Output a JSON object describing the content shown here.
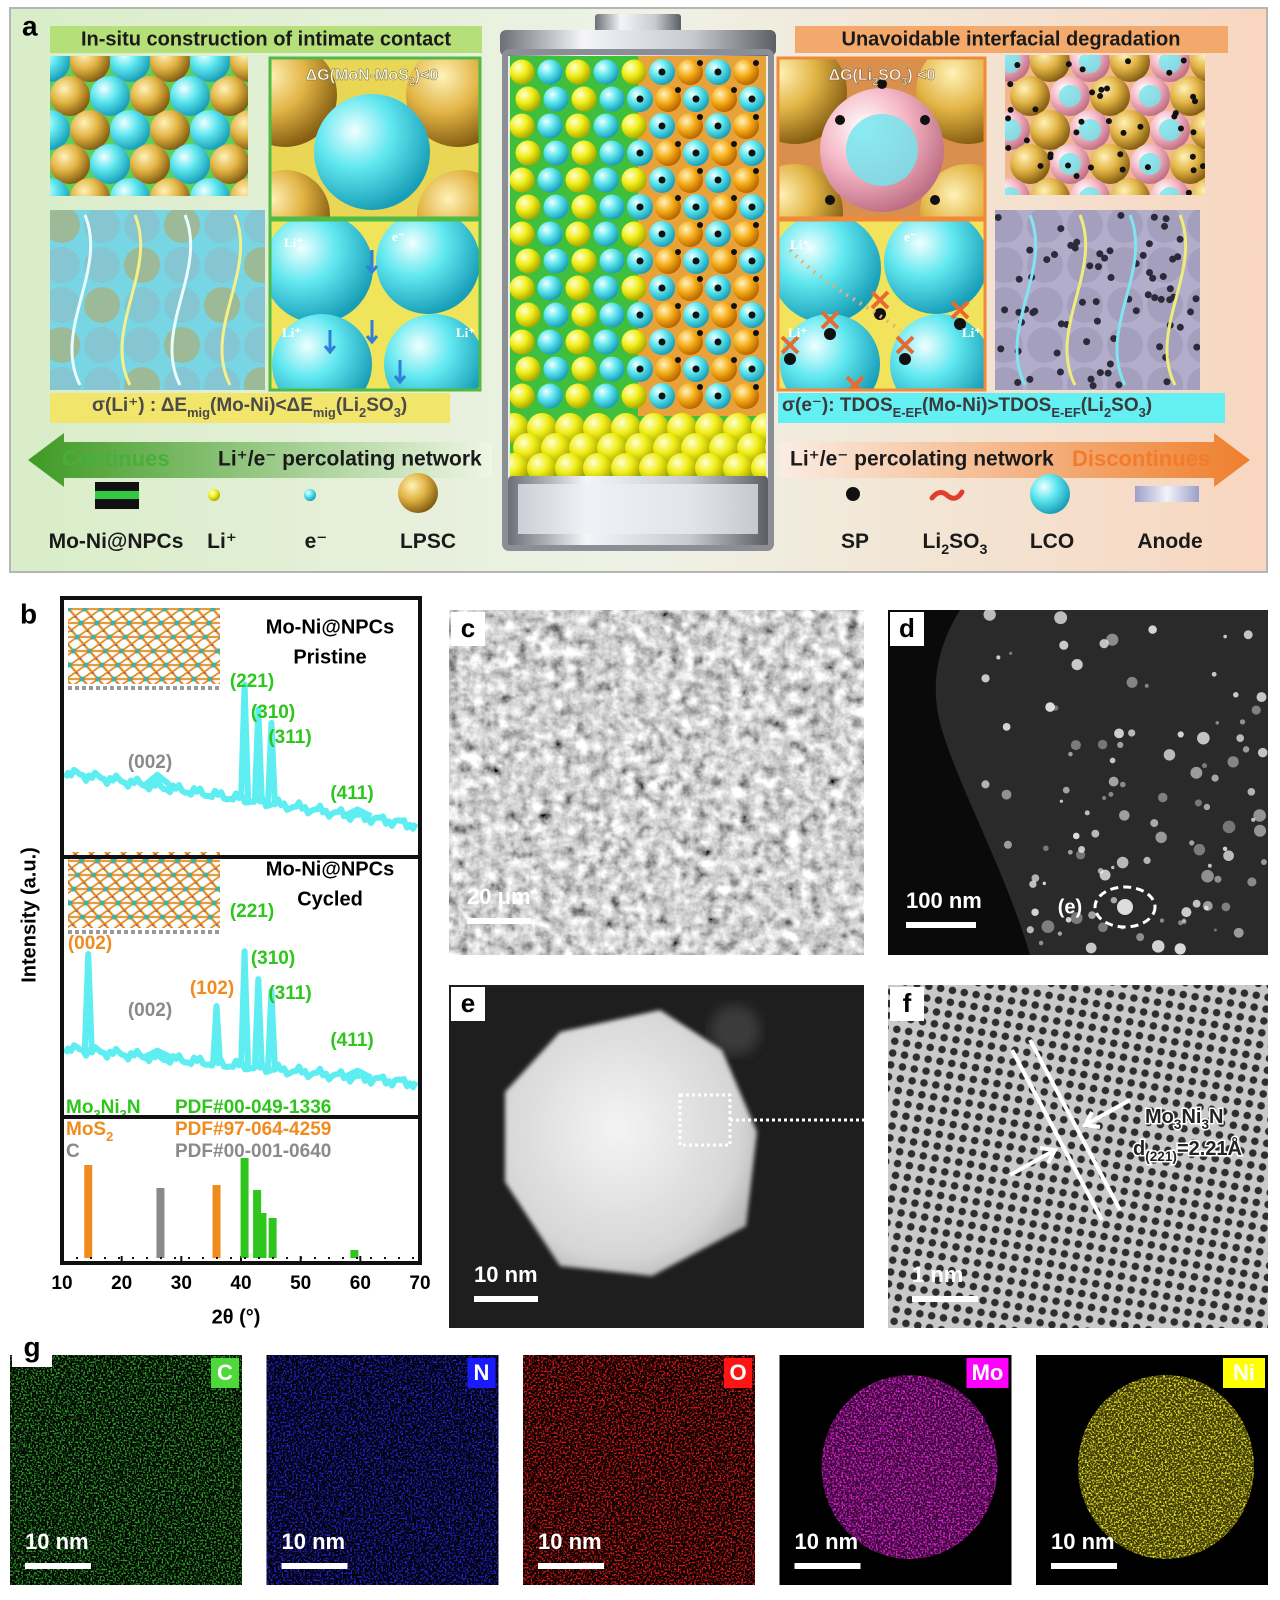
{
  "panel_a": {
    "label": "a",
    "left_title": "In-situ construction of intimate contact",
    "right_title": "Unavoidable interfacial degradation",
    "left_energy": [
      "ΔG(MoN-MoS",
      "2",
      ")<0"
    ],
    "right_energy": [
      "ΔG(Li",
      "2",
      "SO",
      "3",
      ") <0"
    ],
    "left_inset_labels": [
      "Li⁺",
      "e⁻",
      "Li⁺",
      "Li⁺"
    ],
    "right_inset_labels": [
      "Li⁺",
      "e⁻",
      "Li⁺",
      "Li⁺"
    ],
    "left_sigma": [
      "σ(Li⁺) : ΔE",
      "mig",
      "(Mo-Ni)<ΔE",
      "mig",
      "(Li",
      "2",
      "SO",
      "3",
      ")"
    ],
    "right_sigma": [
      "σ(e⁻): TDOS",
      "E-EF",
      "(Mo-Ni)>TDOS",
      "E-EF",
      "(Li",
      "2",
      "SO",
      "3",
      ")"
    ],
    "left_arrow": {
      "status": "Continues",
      "network": "Li⁺/e⁻ percolating network"
    },
    "right_arrow": {
      "network": "Li⁺/e⁻ percolating network",
      "status": "Discontinues"
    },
    "left_legend": [
      [
        "Mo-Ni@NPCs"
      ],
      [
        "Li⁺"
      ],
      [
        "e⁻"
      ],
      [
        "LPSC"
      ]
    ],
    "right_legend": [
      [
        "SP"
      ],
      [
        "Li",
        "2",
        "SO",
        "3"
      ],
      [
        "LCO"
      ],
      [
        "Anode"
      ]
    ]
  },
  "panel_b": {
    "label": "b",
    "ylabel": "Intensity (a.u.)",
    "xlabel": "2θ (°)",
    "xlim": [
      10,
      70
    ],
    "xticks": [
      10,
      20,
      30,
      40,
      50,
      60,
      70
    ],
    "pristine": {
      "sample": "Mo-Ni@NPCs",
      "state": "Pristine",
      "peaks": [
        {
          "label": "(002)",
          "color": "#8a8a8a",
          "x": 26,
          "intensity": 10
        },
        {
          "label": "(221)",
          "color": "#2ec51c",
          "x": 40.6,
          "intensity": 100
        },
        {
          "label": "(310)",
          "color": "#2ec51c",
          "x": 42.9,
          "intensity": 80
        },
        {
          "label": "(311)",
          "color": "#2ec51c",
          "x": 45.1,
          "intensity": 70
        },
        {
          "label": "(411)",
          "color": "#2ec51c",
          "x": 59.5,
          "intensity": 6
        }
      ]
    },
    "cycled": {
      "sample": "Mo-Ni@NPCs",
      "state": "Cycled",
      "peaks": [
        {
          "label": "(002)",
          "color": "#f08c1e",
          "x": 14.4,
          "intensity": 84
        },
        {
          "label": "(002)",
          "color": "#8a8a8a",
          "x": 26,
          "intensity": 6
        },
        {
          "label": "(102)",
          "color": "#f08c1e",
          "x": 35.9,
          "intensity": 50
        },
        {
          "label": "(221)",
          "color": "#2ec51c",
          "x": 40.6,
          "intensity": 100
        },
        {
          "label": "(310)",
          "color": "#2ec51c",
          "x": 42.9,
          "intensity": 77
        },
        {
          "label": "(311)",
          "color": "#2ec51c",
          "x": 45.1,
          "intensity": 68
        },
        {
          "label": "(411)",
          "color": "#2ec51c",
          "x": 59.5,
          "intensity": 6
        }
      ]
    },
    "references": [
      {
        "phase": [
          "Mo",
          "3",
          "Ni",
          "3",
          "N"
        ],
        "pdf": "PDF#00-049-1336",
        "color": "#2ec51c",
        "lines": [
          {
            "x": 40.6,
            "intensity": 100
          },
          {
            "x": 42.7,
            "intensity": 68
          },
          {
            "x": 43.6,
            "intensity": 45
          },
          {
            "x": 45.3,
            "intensity": 40
          },
          {
            "x": 59.0,
            "intensity": 8
          }
        ]
      },
      {
        "phase": [
          "MoS",
          "2"
        ],
        "pdf": "PDF#97-064-4259",
        "color": "#f08c1e",
        "lines": [
          {
            "x": 14.4,
            "intensity": 93
          },
          {
            "x": 35.9,
            "intensity": 73
          }
        ]
      },
      {
        "phase": [
          "C"
        ],
        "pdf": "PDF#00-001-0640",
        "color": "#8a8a8a",
        "lines": [
          {
            "x": 26.5,
            "intensity": 70
          }
        ]
      }
    ]
  },
  "panel_c": {
    "label": "c",
    "scale_bar": "20 μm"
  },
  "panel_d": {
    "label": "d",
    "scale_bar": "100 nm",
    "callout": "(e)"
  },
  "panel_e": {
    "label": "e",
    "scale_bar": "10 nm"
  },
  "panel_f": {
    "label": "f",
    "scale_bar": "1 nm",
    "phase": [
      "Mo",
      "3",
      "Ni",
      "3",
      "N"
    ],
    "spacing": [
      "d",
      "(221)",
      "=2.21Å"
    ]
  },
  "panel_g": {
    "label": "g",
    "maps": [
      {
        "element": "C",
        "tag_color": "#4fd83a",
        "color": "#2fa22a",
        "scale_bar": "10 nm"
      },
      {
        "element": "N",
        "tag_color": "#1a1aff",
        "color": "#2424d8",
        "scale_bar": "10 nm"
      },
      {
        "element": "O",
        "tag_color": "#ff1414",
        "color": "#e01818",
        "scale_bar": "10 nm"
      },
      {
        "element": "Mo",
        "tag_color": "#ff00ff",
        "color": "#e020d8",
        "scale_bar": "10 nm"
      },
      {
        "element": "Ni",
        "tag_color": "#ffff00",
        "color": "#e8e020",
        "scale_bar": "10 nm"
      }
    ]
  }
}
